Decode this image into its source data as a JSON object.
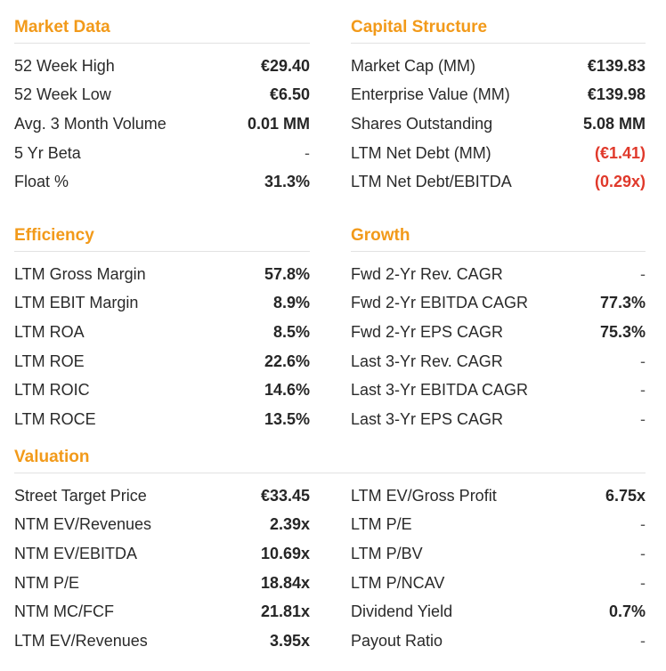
{
  "market_data": {
    "title": "Market Data",
    "rows": [
      {
        "label": "52 Week High",
        "value": "€29.40"
      },
      {
        "label": "52 Week Low",
        "value": "€6.50"
      },
      {
        "label": "Avg. 3 Month Volume",
        "value": "0.01 MM"
      },
      {
        "label": "5 Yr Beta",
        "value": "-"
      },
      {
        "label": "Float %",
        "value": "31.3%"
      }
    ]
  },
  "capital_structure": {
    "title": "Capital Structure",
    "rows": [
      {
        "label": "Market Cap (MM)",
        "value": "€139.83"
      },
      {
        "label": "Enterprise Value (MM)",
        "value": "€139.98"
      },
      {
        "label": "Shares Outstanding",
        "value": "5.08 MM"
      },
      {
        "label": "LTM Net Debt (MM)",
        "value": "(€1.41)"
      },
      {
        "label": "LTM Net Debt/EBITDA",
        "value": "(0.29x)"
      }
    ]
  },
  "efficiency": {
    "title": "Efficiency",
    "rows": [
      {
        "label": "LTM Gross Margin",
        "value": "57.8%"
      },
      {
        "label": "LTM EBIT Margin",
        "value": "8.9%"
      },
      {
        "label": "LTM ROA",
        "value": "8.5%"
      },
      {
        "label": "LTM ROE",
        "value": "22.6%"
      },
      {
        "label": "LTM ROIC",
        "value": "14.6%"
      },
      {
        "label": "LTM ROCE",
        "value": "13.5%"
      }
    ]
  },
  "growth": {
    "title": "Growth",
    "rows": [
      {
        "label": "Fwd 2-Yr Rev. CAGR",
        "value": "-"
      },
      {
        "label": "Fwd 2-Yr EBITDA CAGR",
        "value": "77.3%"
      },
      {
        "label": "Fwd 2-Yr EPS CAGR",
        "value": "75.3%"
      },
      {
        "label": "Last 3-Yr Rev. CAGR",
        "value": "-"
      },
      {
        "label": "Last 3-Yr EBITDA CAGR",
        "value": "-"
      },
      {
        "label": "Last 3-Yr EPS CAGR",
        "value": "-"
      }
    ]
  },
  "valuation": {
    "title": "Valuation",
    "left_rows": [
      {
        "label": "Street Target Price",
        "value": "€33.45"
      },
      {
        "label": "NTM EV/Revenues",
        "value": "2.39x"
      },
      {
        "label": "NTM EV/EBITDA",
        "value": "10.69x"
      },
      {
        "label": "NTM P/E",
        "value": "18.84x"
      },
      {
        "label": "NTM MC/FCF",
        "value": "21.81x"
      },
      {
        "label": "LTM EV/Revenues",
        "value": "3.95x"
      }
    ],
    "right_rows": [
      {
        "label": "LTM EV/Gross Profit",
        "value": "6.75x"
      },
      {
        "label": "LTM P/E",
        "value": "-"
      },
      {
        "label": "LTM P/BV",
        "value": "-"
      },
      {
        "label": "LTM P/NCAV",
        "value": "-"
      },
      {
        "label": "Dividend Yield",
        "value": "0.7%"
      },
      {
        "label": "Payout Ratio",
        "value": "-"
      }
    ]
  },
  "colors": {
    "accent": "#f29a1a",
    "negative": "#e0392b",
    "divider": "#e2e2e2"
  }
}
